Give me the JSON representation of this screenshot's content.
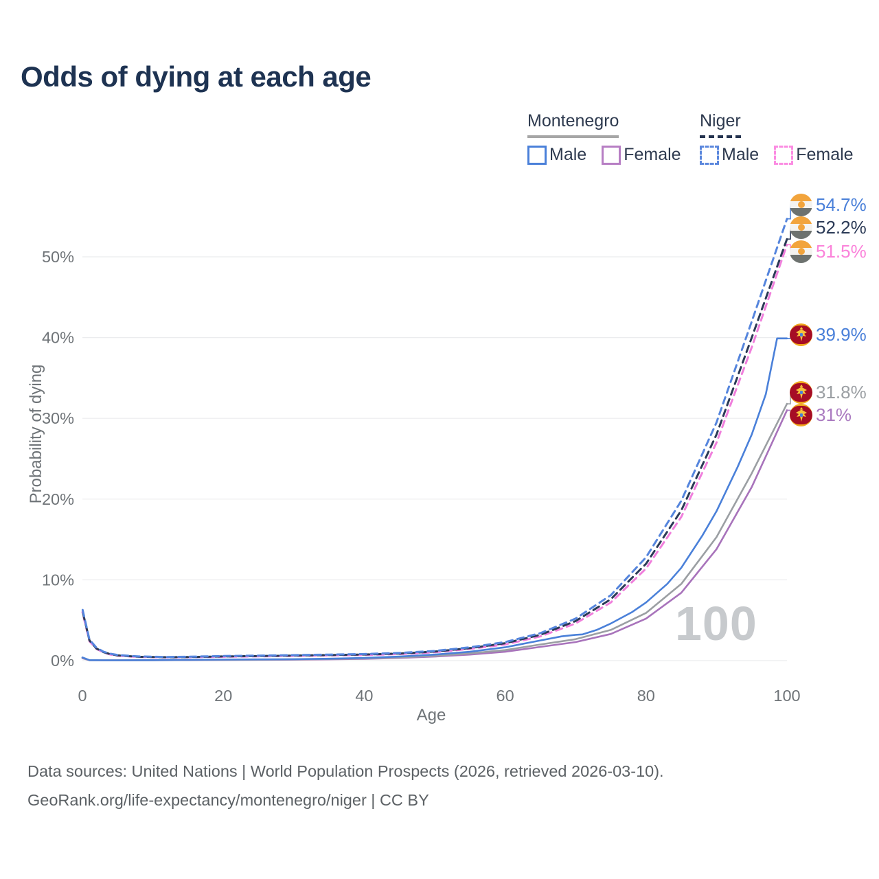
{
  "title": "Odds of dying at each age",
  "legend": {
    "groups": [
      {
        "country": "Montenegro",
        "line_style": "solid",
        "items": [
          {
            "label": "Male",
            "color": "#4a80d9"
          },
          {
            "label": "Female",
            "color": "#b77ec4"
          }
        ]
      },
      {
        "country": "Niger",
        "line_style": "dashed",
        "items": [
          {
            "label": "Male",
            "color": "#5b87dd"
          },
          {
            "label": "Female",
            "color": "#fb8ce2"
          }
        ]
      }
    ]
  },
  "chart_data": {
    "type": "line",
    "title": "Odds of dying at each age",
    "xlabel": "Age",
    "ylabel": "Probability of dying",
    "xlim": [
      0,
      100
    ],
    "ylim_pct": [
      0,
      57
    ],
    "x_ticks": [
      "0",
      "20",
      "40",
      "60",
      "80",
      "100"
    ],
    "y_ticks": [
      "0%",
      "10%",
      "20%",
      "30%",
      "40%",
      "50%"
    ],
    "grid": "horizontal",
    "legend_position": "top-right",
    "hover_age_label": "100",
    "series": [
      {
        "id": "montenegro-female",
        "name": "Montenegro Female",
        "color": "#a873bb",
        "dash": false,
        "points": [
          [
            0,
            0.3
          ],
          [
            1,
            0.05
          ],
          [
            3,
            0.03
          ],
          [
            5,
            0.03
          ],
          [
            10,
            0.04
          ],
          [
            15,
            0.06
          ],
          [
            20,
            0.08
          ],
          [
            25,
            0.1
          ],
          [
            30,
            0.12
          ],
          [
            35,
            0.16
          ],
          [
            40,
            0.22
          ],
          [
            45,
            0.33
          ],
          [
            50,
            0.5
          ],
          [
            55,
            0.75
          ],
          [
            60,
            1.1
          ],
          [
            65,
            1.7
          ],
          [
            70,
            2.3
          ],
          [
            75,
            3.3
          ],
          [
            80,
            5.2
          ],
          [
            85,
            8.4
          ],
          [
            90,
            13.8
          ],
          [
            95,
            21.5
          ],
          [
            100,
            31.0
          ]
        ]
      },
      {
        "id": "montenegro-both",
        "name": "Montenegro Both sexes",
        "color": "#9b9fa3",
        "dash": false,
        "points": [
          [
            0,
            0.35
          ],
          [
            1,
            0.05
          ],
          [
            3,
            0.04
          ],
          [
            5,
            0.03
          ],
          [
            10,
            0.05
          ],
          [
            15,
            0.08
          ],
          [
            20,
            0.1
          ],
          [
            25,
            0.12
          ],
          [
            30,
            0.15
          ],
          [
            35,
            0.2
          ],
          [
            40,
            0.27
          ],
          [
            45,
            0.4
          ],
          [
            50,
            0.6
          ],
          [
            55,
            0.9
          ],
          [
            60,
            1.3
          ],
          [
            65,
            2.0
          ],
          [
            70,
            2.65
          ],
          [
            75,
            3.8
          ],
          [
            80,
            5.9
          ],
          [
            85,
            9.5
          ],
          [
            90,
            15.3
          ],
          [
            95,
            23.2
          ],
          [
            100,
            31.8
          ]
        ]
      },
      {
        "id": "montenegro-male",
        "name": "Montenegro Male",
        "color": "#4a80d9",
        "dash": false,
        "points": [
          [
            0,
            0.4
          ],
          [
            1,
            0.06
          ],
          [
            3,
            0.04
          ],
          [
            5,
            0.04
          ],
          [
            10,
            0.06
          ],
          [
            15,
            0.1
          ],
          [
            20,
            0.13
          ],
          [
            25,
            0.15
          ],
          [
            30,
            0.18
          ],
          [
            35,
            0.24
          ],
          [
            40,
            0.33
          ],
          [
            45,
            0.5
          ],
          [
            50,
            0.75
          ],
          [
            55,
            1.1
          ],
          [
            60,
            1.65
          ],
          [
            65,
            2.5
          ],
          [
            68,
            3.0
          ],
          [
            70,
            3.2
          ],
          [
            71,
            3.25
          ],
          [
            73,
            3.8
          ],
          [
            75,
            4.6
          ],
          [
            78,
            6.0
          ],
          [
            80,
            7.2
          ],
          [
            83,
            9.5
          ],
          [
            85,
            11.5
          ],
          [
            88,
            15.5
          ],
          [
            90,
            18.5
          ],
          [
            93,
            24.0
          ],
          [
            95,
            28.0
          ],
          [
            97,
            33.0
          ],
          [
            98.6,
            39.9
          ],
          [
            100,
            39.9
          ]
        ]
      },
      {
        "id": "niger-female",
        "name": "Niger Female",
        "color": "#f07fdc",
        "dash": true,
        "points": [
          [
            0,
            6.0
          ],
          [
            1,
            2.4
          ],
          [
            2,
            1.45
          ],
          [
            3,
            1.0
          ],
          [
            4,
            0.75
          ],
          [
            5,
            0.6
          ],
          [
            8,
            0.45
          ],
          [
            12,
            0.4
          ],
          [
            16,
            0.43
          ],
          [
            20,
            0.48
          ],
          [
            25,
            0.53
          ],
          [
            30,
            0.58
          ],
          [
            35,
            0.64
          ],
          [
            40,
            0.7
          ],
          [
            45,
            0.81
          ],
          [
            50,
            1.04
          ],
          [
            55,
            1.45
          ],
          [
            60,
            2.0
          ],
          [
            65,
            3.0
          ],
          [
            70,
            4.6
          ],
          [
            75,
            7.2
          ],
          [
            80,
            11.4
          ],
          [
            85,
            17.8
          ],
          [
            90,
            27.0
          ],
          [
            95,
            38.8
          ],
          [
            100,
            51.5
          ]
        ]
      },
      {
        "id": "niger-both",
        "name": "Niger Both sexes",
        "color": "#2b3a56",
        "dash": true,
        "points": [
          [
            0,
            6.2
          ],
          [
            1,
            2.5
          ],
          [
            2,
            1.5
          ],
          [
            3,
            1.05
          ],
          [
            4,
            0.8
          ],
          [
            5,
            0.65
          ],
          [
            8,
            0.48
          ],
          [
            12,
            0.42
          ],
          [
            16,
            0.46
          ],
          [
            20,
            0.52
          ],
          [
            25,
            0.57
          ],
          [
            30,
            0.62
          ],
          [
            35,
            0.69
          ],
          [
            40,
            0.76
          ],
          [
            45,
            0.88
          ],
          [
            50,
            1.12
          ],
          [
            55,
            1.55
          ],
          [
            60,
            2.15
          ],
          [
            65,
            3.2
          ],
          [
            70,
            4.9
          ],
          [
            75,
            7.6
          ],
          [
            80,
            12.0
          ],
          [
            85,
            18.6
          ],
          [
            90,
            28.0
          ],
          [
            95,
            40.0
          ],
          [
            100,
            52.2
          ]
        ]
      },
      {
        "id": "niger-male",
        "name": "Niger Male",
        "color": "#5585dd",
        "dash": true,
        "points": [
          [
            0,
            6.4
          ],
          [
            1,
            2.6
          ],
          [
            2,
            1.6
          ],
          [
            3,
            1.1
          ],
          [
            4,
            0.85
          ],
          [
            5,
            0.7
          ],
          [
            8,
            0.52
          ],
          [
            12,
            0.45
          ],
          [
            16,
            0.5
          ],
          [
            20,
            0.57
          ],
          [
            25,
            0.62
          ],
          [
            30,
            0.68
          ],
          [
            35,
            0.75
          ],
          [
            40,
            0.82
          ],
          [
            45,
            0.95
          ],
          [
            50,
            1.2
          ],
          [
            55,
            1.65
          ],
          [
            60,
            2.3
          ],
          [
            65,
            3.4
          ],
          [
            70,
            5.2
          ],
          [
            75,
            8.1
          ],
          [
            80,
            12.8
          ],
          [
            85,
            19.8
          ],
          [
            90,
            29.5
          ],
          [
            95,
            42.0
          ],
          [
            100,
            54.7
          ]
        ]
      }
    ],
    "end_labels": [
      {
        "text": "54.7%",
        "pct": 54.7,
        "color": "#4a80d9",
        "flag": "niger",
        "series": "niger-male"
      },
      {
        "text": "52.2%",
        "pct": 52.2,
        "color": "#2b3a56",
        "flag": "niger",
        "series": "niger-both"
      },
      {
        "text": "51.5%",
        "pct": 51.5,
        "color": "#fb82da",
        "flag": "niger",
        "series": "niger-female"
      },
      {
        "text": "39.9%",
        "pct": 39.9,
        "color": "#4a80d9",
        "flag": "montenegro",
        "series": "montenegro-male"
      },
      {
        "text": "31.8%",
        "pct": 31.8,
        "color": "#9b9fa3",
        "flag": "montenegro",
        "series": "montenegro-both"
      },
      {
        "text": "31%",
        "pct": 31.0,
        "color": "#aa7ac0",
        "flag": "montenegro",
        "series": "montenegro-female"
      }
    ]
  },
  "footer": {
    "line1": "Data sources: United Nations | World Population Prospects (2026, retrieved 2026-03-10).",
    "line2": "GeoRank.org/life-expectancy/montenegro/niger | CC BY"
  }
}
